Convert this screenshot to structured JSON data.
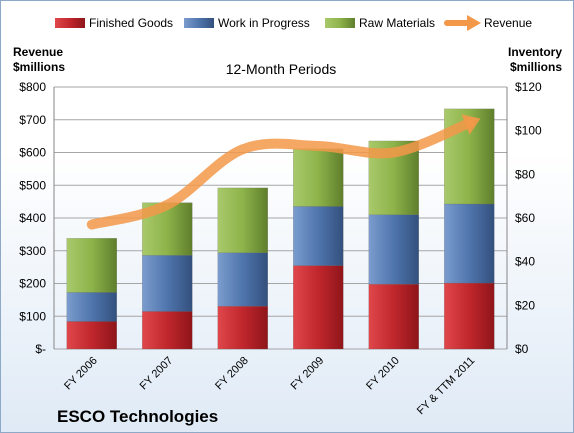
{
  "chart_data": {
    "type": "bar",
    "stacked": true,
    "title": "",
    "subtitle": "12-Month Periods",
    "company": "ESCO Technologies",
    "categories": [
      "FY 2006",
      "FY 2007",
      "FY 2008",
      "FY 2009",
      "FY 2010",
      "FY & TTM 2011"
    ],
    "left_axis": {
      "title_line1": "Revenue",
      "title_line2": "$millions",
      "ylim": [
        0,
        800
      ],
      "ticks": [
        0,
        100,
        200,
        300,
        400,
        500,
        600,
        700,
        800
      ],
      "tick_labels": [
        "$-",
        "$100",
        "$200",
        "$300",
        "$400",
        "$500",
        "$600",
        "$700",
        "$800"
      ]
    },
    "right_axis": {
      "title_line1": "Inventory",
      "title_line2": "$millions",
      "ylim": [
        0,
        120
      ],
      "ticks": [
        0,
        20,
        40,
        60,
        80,
        100,
        120
      ],
      "tick_labels": [
        "$0",
        "$20",
        "$40",
        "$60",
        "$80",
        "$100",
        "$120"
      ]
    },
    "series": [
      {
        "name": "Finished Goods",
        "type": "bar",
        "axis": "right",
        "color": "#c0272d",
        "values": [
          12.6,
          17.2,
          19.6,
          38.2,
          29.7,
          30.2
        ]
      },
      {
        "name": "Work in Progress",
        "type": "bar",
        "axis": "right",
        "color": "#4f75ad",
        "values": [
          13.3,
          25.7,
          24.5,
          27.1,
          31.8,
          36.2
        ]
      },
      {
        "name": "Raw Materials",
        "type": "bar",
        "axis": "right",
        "color": "#8db34a",
        "values": [
          24.8,
          24.1,
          29.7,
          26.4,
          33.8,
          43.6
        ]
      },
      {
        "name": "Revenue",
        "type": "line",
        "axis": "left",
        "color": "#f39849",
        "values": [
          380,
          440,
          610,
          620,
          600,
          690
        ]
      }
    ],
    "legend_position": "top",
    "grid": true
  }
}
